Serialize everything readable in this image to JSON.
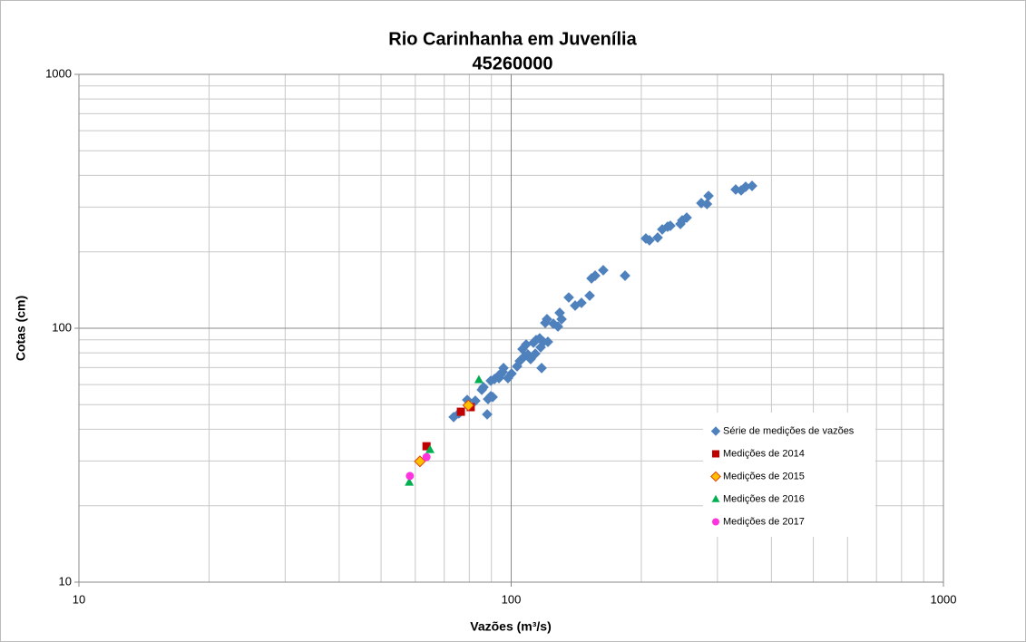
{
  "chart_data": {
    "type": "scatter",
    "title": "Rio Carinhanha em Juvenília",
    "subtitle": "45260000",
    "xlabel": "Vazões (m³/s)",
    "ylabel": "Cotas (cm)",
    "xscale": "log",
    "yscale": "log",
    "xlim": [
      10,
      1000
    ],
    "ylim": [
      10,
      1000
    ],
    "xticks": [
      10,
      100,
      1000
    ],
    "yticks": [
      10,
      100,
      1000
    ],
    "grid": true,
    "minor_grid": true,
    "legend": "lower right",
    "series": [
      {
        "name": "Série de medições de vazões",
        "color": "#4f81bd",
        "marker": "diamond",
        "x": [
          73.6,
          75.7,
          79.1,
          82.6,
          85.5,
          86.3,
          88.4,
          89.7,
          88.0,
          90.6,
          89.7,
          91.5,
          93.2,
          94.6,
          95.5,
          96.0,
          93.7,
          98.3,
          100.2,
          103.2,
          104.7,
          107.3,
          106.2,
          108.3,
          109.3,
          110.9,
          112.6,
          113.7,
          114.2,
          116.4,
          117.0,
          118.7,
          119.9,
          117.6,
          121.6,
          121.0,
          125.2,
          128.3,
          129.5,
          130.8,
          135.9,
          140.6,
          145.4,
          151.9,
          153.4,
          156.4,
          163.3,
          183.4,
          204.9,
          208.9,
          218.2,
          223.6,
          230.1,
          233.5,
          246.3,
          248.7,
          254.7,
          275.3,
          286.1,
          283.8,
          330.7,
          340.4,
          348.7,
          360.8
        ],
        "y": [
          44.7,
          46.2,
          52.2,
          51.8,
          57.2,
          58.6,
          52.6,
          54.0,
          45.8,
          53.6,
          62.1,
          63.1,
          64.7,
          65.8,
          67.4,
          69.7,
          63.6,
          63.6,
          66.3,
          70.8,
          74.3,
          77.5,
          82.8,
          86.3,
          78.8,
          75.6,
          87.7,
          79.4,
          89.9,
          91.3,
          84.1,
          88.4,
          105.0,
          69.7,
          88.4,
          108.6,
          104.2,
          101.6,
          115.0,
          108.6,
          132.2,
          122.8,
          125.9,
          134.4,
          157.2,
          161.1,
          169.3,
          161.1,
          225.7,
          222.0,
          227.6,
          245.1,
          251.2,
          253.2,
          257.4,
          266.1,
          272.7,
          311.1,
          332.1,
          308.6,
          352.0,
          349.2,
          360.8,
          363.7
        ]
      },
      {
        "name": "Medições de 2014",
        "color": "#c00000",
        "marker": "square",
        "x": [
          76.5,
          80.6,
          63.7
        ],
        "y": [
          46.9,
          48.9,
          34.3
        ]
      },
      {
        "name": "Medições de 2015",
        "color": "#ffc000",
        "edge": "#e0400a",
        "marker": "diamond",
        "x": [
          79.6,
          61.5
        ],
        "y": [
          49.7,
          29.9
        ]
      },
      {
        "name": "Medições de 2016",
        "color": "#00b050",
        "marker": "triangle",
        "x": [
          84.2,
          64.9,
          58.1
        ],
        "y": [
          62.6,
          33.2,
          24.7
        ]
      },
      {
        "name": "Medições de 2017",
        "color": "#ff33dd",
        "marker": "circle",
        "x": [
          63.7,
          58.3
        ],
        "y": [
          31.1,
          26.2
        ]
      }
    ]
  }
}
